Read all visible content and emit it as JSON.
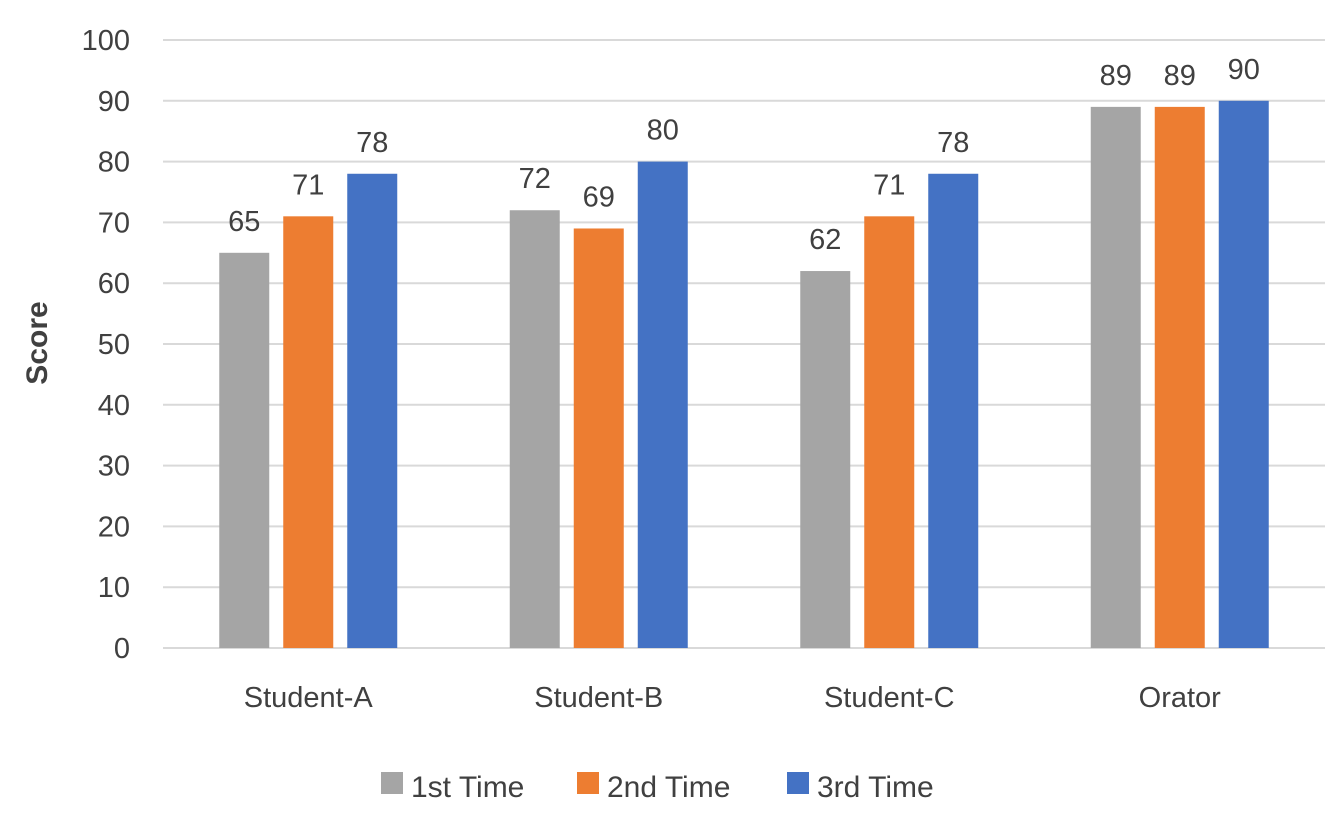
{
  "chart_data": {
    "type": "bar",
    "title": "",
    "xlabel": "",
    "ylabel": "Score",
    "ylim": [
      0,
      100
    ],
    "yticks": [
      0,
      10,
      20,
      30,
      40,
      50,
      60,
      70,
      80,
      90,
      100
    ],
    "grid": true,
    "legend_position": "bottom",
    "categories": [
      "Student-A",
      "Student-B",
      "Student-C",
      "Orator"
    ],
    "series": [
      {
        "name": "1st Time",
        "color": "#a5a5a5",
        "values": [
          65,
          72,
          62,
          89
        ]
      },
      {
        "name": "2nd Time",
        "color": "#ed7d31",
        "values": [
          71,
          69,
          71,
          89
        ]
      },
      {
        "name": "3rd Time",
        "color": "#4472c4",
        "values": [
          78,
          80,
          78,
          90
        ]
      }
    ]
  }
}
